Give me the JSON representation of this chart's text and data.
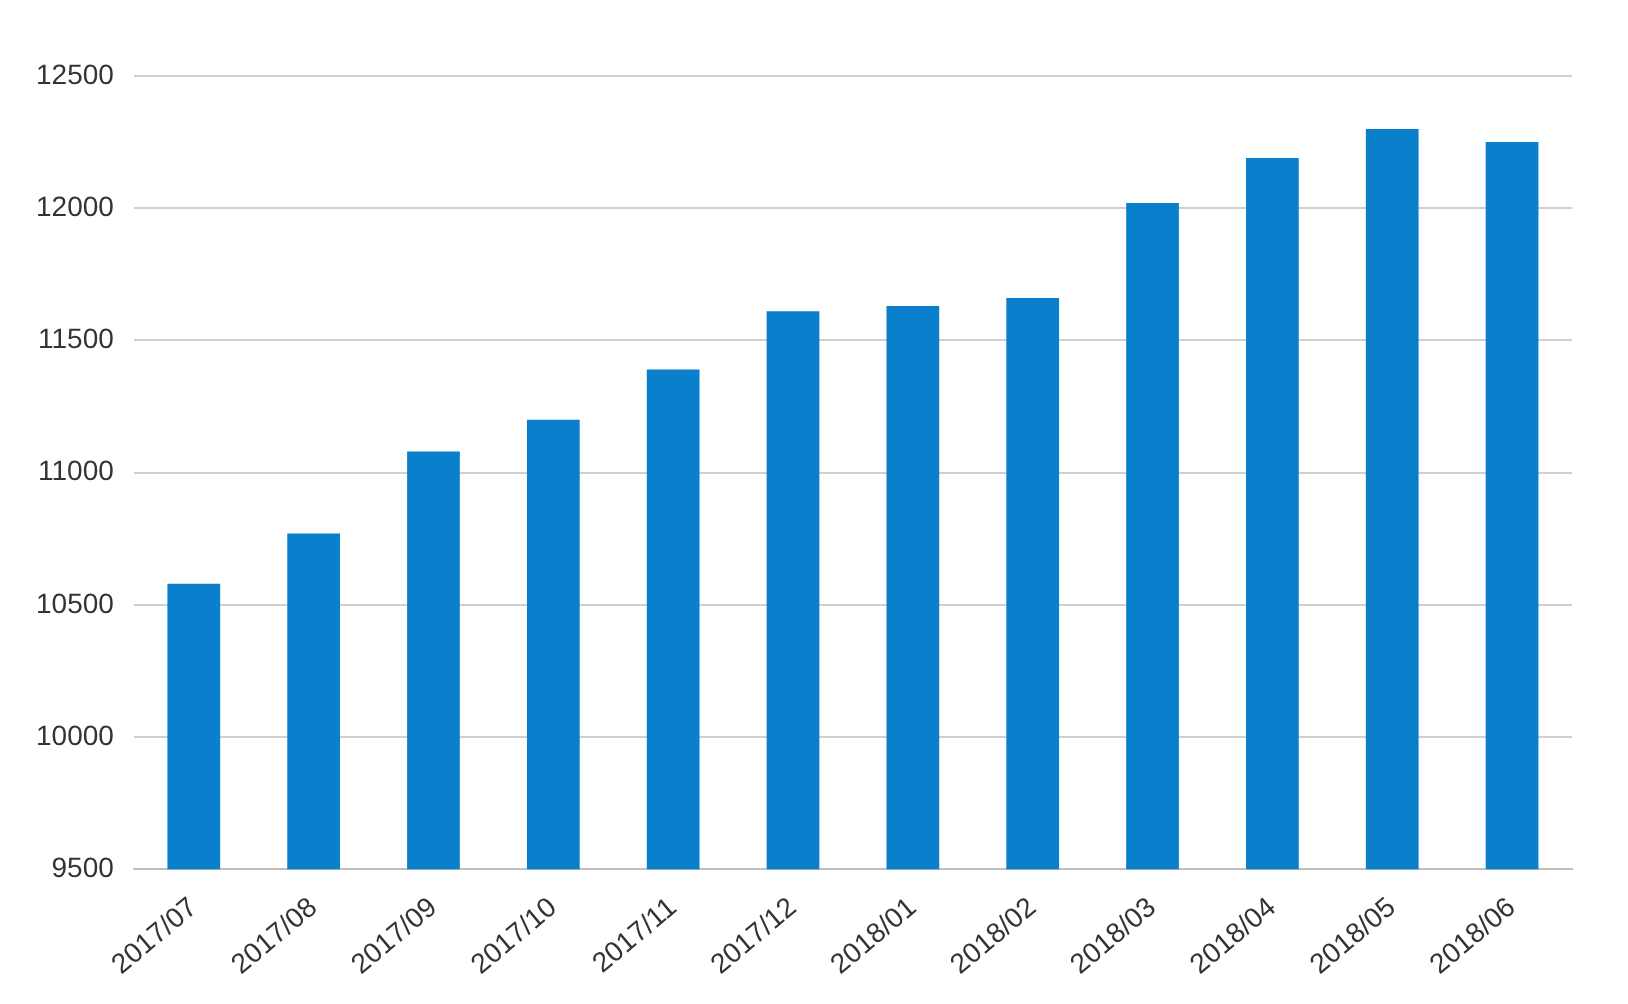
{
  "chart_data": {
    "type": "bar",
    "categories": [
      "2017/07",
      "2017/08",
      "2017/09",
      "2017/10",
      "2017/11",
      "2017/12",
      "2018/01",
      "2018/02",
      "2018/03",
      "2018/04",
      "2018/05",
      "2018/06"
    ],
    "values": [
      10580,
      10770,
      11080,
      11200,
      11390,
      11610,
      11630,
      11660,
      12020,
      12190,
      12300,
      12250
    ],
    "color": "#0a7fcc",
    "ylim": [
      9500,
      12500
    ],
    "yticks": [
      9500,
      10000,
      10500,
      11000,
      11500,
      12000,
      12500
    ],
    "grid": "y",
    "legend": false
  }
}
